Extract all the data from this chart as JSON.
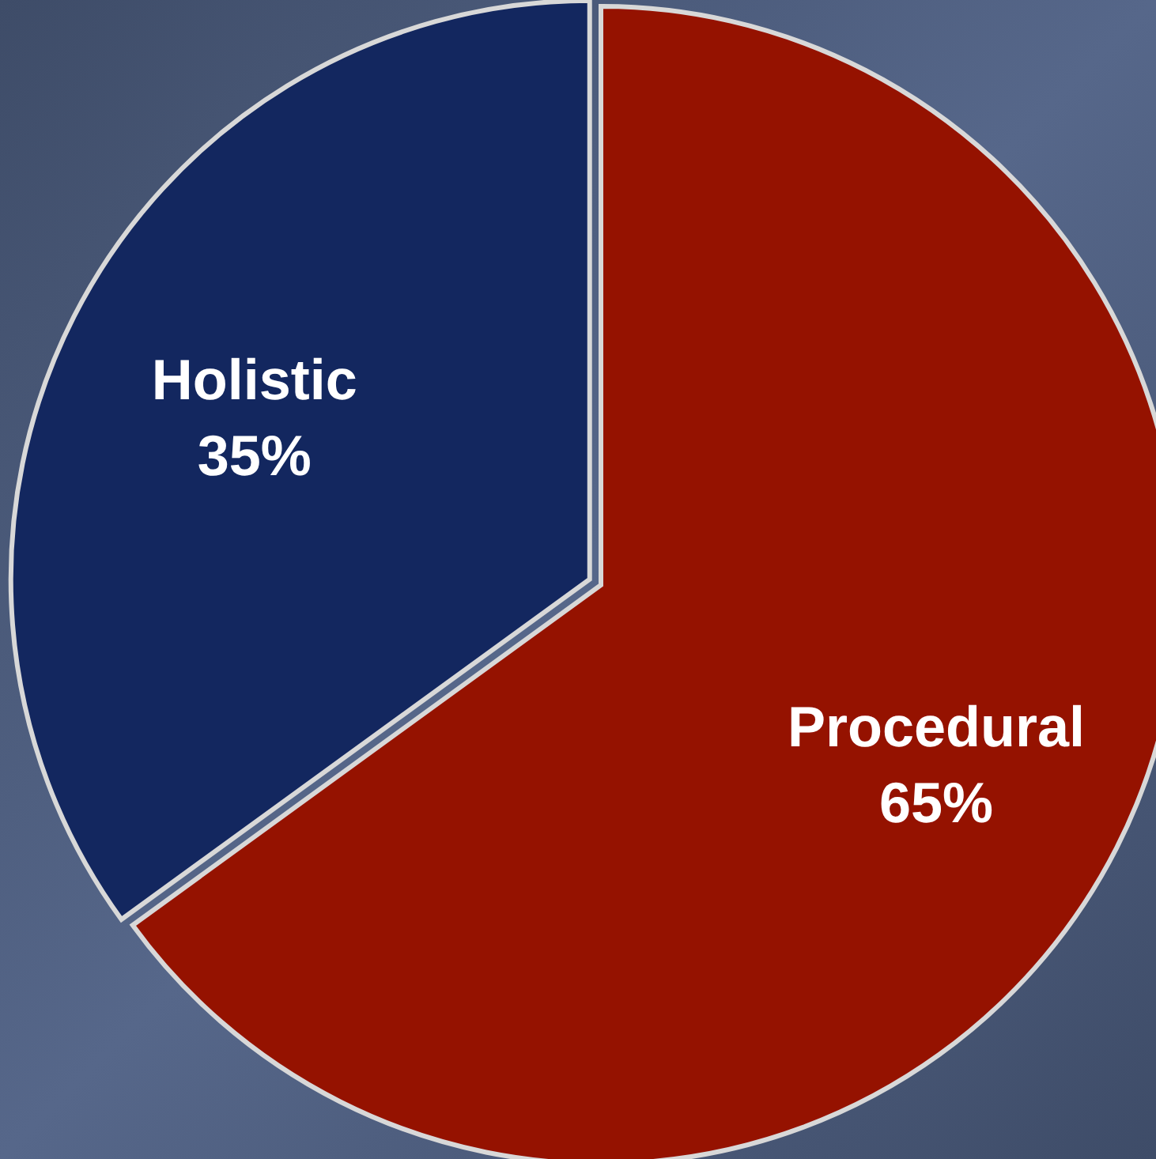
{
  "chart_data": {
    "type": "pie",
    "categories": [
      "Procedural",
      "Holistic"
    ],
    "values": [
      65,
      35
    ],
    "colors": [
      "#951200",
      "#13275f"
    ],
    "value_labels": [
      "65%",
      "35%"
    ]
  }
}
